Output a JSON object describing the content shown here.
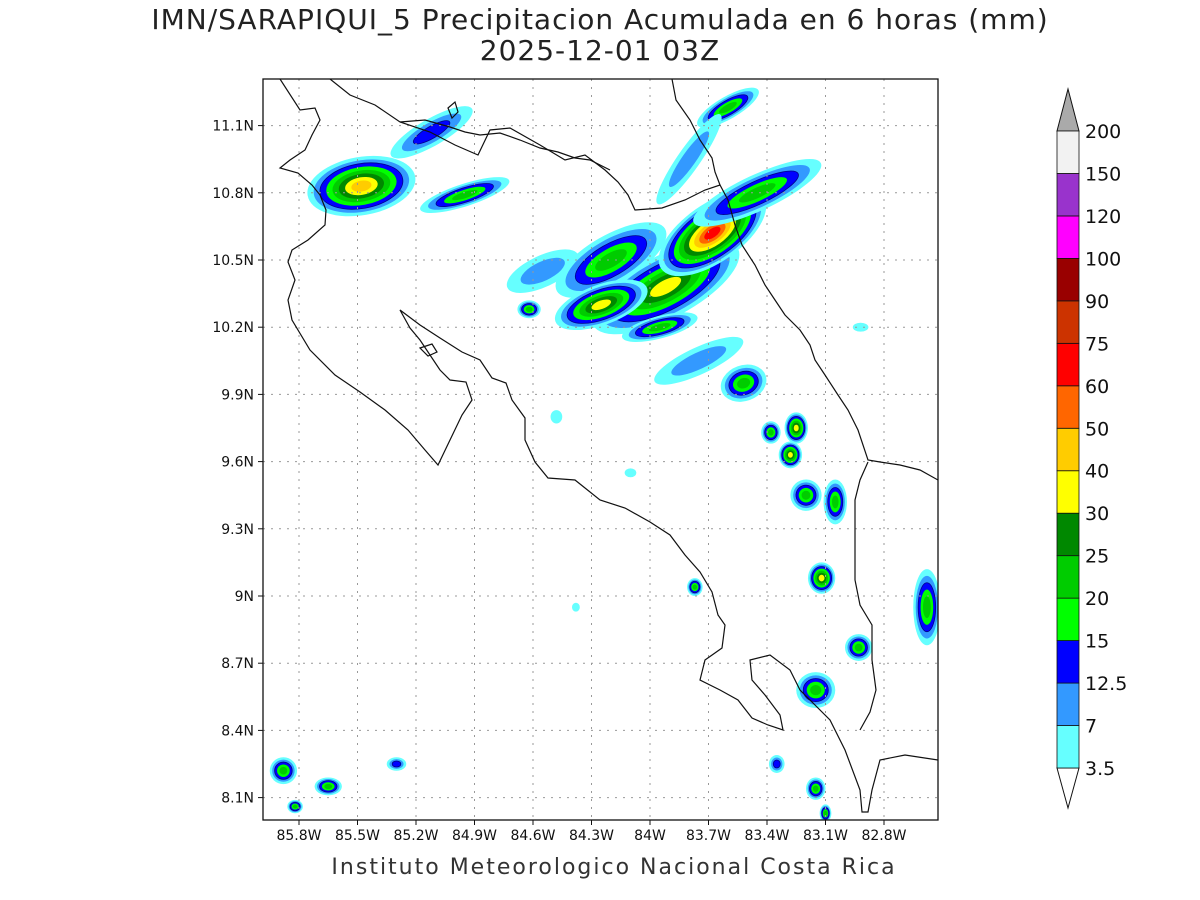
{
  "title": "IMN/SARAPIQUI_5 Precipitacion Acumulada en 6 horas (mm)",
  "subtitle": "2025-12-01 03Z",
  "footer": "Instituto Meteorologico Nacional Costa Rica",
  "map": {
    "lat_range": [
      8.0,
      11.3
    ],
    "lon_range": [
      -86.0,
      -83.0
    ],
    "lat_ticks": [
      {
        "value": 8.1,
        "label": "8.1N"
      },
      {
        "value": 8.4,
        "label": "8.4N"
      },
      {
        "value": 8.7,
        "label": "8.7N"
      },
      {
        "value": 9.0,
        "label": "9N"
      },
      {
        "value": 9.3,
        "label": "9.3N"
      },
      {
        "value": 9.6,
        "label": "9.6N"
      },
      {
        "value": 9.9,
        "label": "9.9N"
      },
      {
        "value": 10.2,
        "label": "10.2N"
      },
      {
        "value": 10.5,
        "label": "10.5N"
      },
      {
        "value": 10.8,
        "label": "10.8N"
      },
      {
        "value": 11.1,
        "label": "11.1N"
      }
    ],
    "lon_ticks": [
      {
        "value": -85.8,
        "label": "85.8W"
      },
      {
        "value": -85.5,
        "label": "85.5W"
      },
      {
        "value": -85.2,
        "label": "85.2W"
      },
      {
        "value": -84.9,
        "label": "84.9W"
      },
      {
        "value": -84.6,
        "label": "84.6W"
      },
      {
        "value": -84.3,
        "label": "84.3W"
      },
      {
        "value": -84.0,
        "label": "84W"
      },
      {
        "value": -83.7,
        "label": "83.7W"
      },
      {
        "value": -83.4,
        "label": "83.4W"
      },
      {
        "value": -83.1,
        "label": "83.1W"
      },
      {
        "value": -82.8,
        "label": "82.8W"
      }
    ],
    "grid": "dotted"
  },
  "colorbar": {
    "levels": [
      {
        "label": "3.5",
        "color": "#66ffff"
      },
      {
        "label": "7",
        "color": "#3399ff"
      },
      {
        "label": "12.5",
        "color": "#0000ff"
      },
      {
        "label": "15",
        "color": "#00ff00"
      },
      {
        "label": "20",
        "color": "#00cc00"
      },
      {
        "label": "25",
        "color": "#008800"
      },
      {
        "label": "30",
        "color": "#ffff00"
      },
      {
        "label": "40",
        "color": "#ffcc00"
      },
      {
        "label": "50",
        "color": "#ff6600"
      },
      {
        "label": "60",
        "color": "#ff0000"
      },
      {
        "label": "75",
        "color": "#cc3300"
      },
      {
        "label": "90",
        "color": "#990000"
      },
      {
        "label": "100",
        "color": "#ff00ff"
      },
      {
        "label": "120",
        "color": "#9933cc"
      },
      {
        "label": "150",
        "color": "#f2f2f2"
      },
      {
        "label": "200",
        "color": ""
      }
    ],
    "over_color": "#aaaaaa",
    "under_color": "#ffffff"
  },
  "precip_cells": [
    {
      "lon": -85.48,
      "lat": 10.83,
      "rx_deg": 0.28,
      "ry_deg": 0.13,
      "rot": -10,
      "max": 40
    },
    {
      "lon": -84.95,
      "lat": 10.79,
      "rx_deg": 0.24,
      "ry_deg": 0.05,
      "rot": -18,
      "max": 20
    },
    {
      "lon": -85.12,
      "lat": 11.07,
      "rx_deg": 0.24,
      "ry_deg": 0.06,
      "rot": -30,
      "max": 12.5
    },
    {
      "lon": -84.55,
      "lat": 10.45,
      "rx_deg": 0.2,
      "ry_deg": 0.07,
      "rot": -25,
      "max": 7
    },
    {
      "lon": -84.2,
      "lat": 10.5,
      "rx_deg": 0.32,
      "ry_deg": 0.11,
      "rot": -30,
      "max": 20
    },
    {
      "lon": -83.92,
      "lat": 10.38,
      "rx_deg": 0.42,
      "ry_deg": 0.14,
      "rot": -28,
      "max": 30
    },
    {
      "lon": -84.25,
      "lat": 10.3,
      "rx_deg": 0.25,
      "ry_deg": 0.09,
      "rot": -20,
      "max": 30
    },
    {
      "lon": -83.68,
      "lat": 10.62,
      "rx_deg": 0.32,
      "ry_deg": 0.13,
      "rot": -35,
      "max": 60
    },
    {
      "lon": -83.45,
      "lat": 10.8,
      "rx_deg": 0.36,
      "ry_deg": 0.08,
      "rot": -25,
      "max": 20
    },
    {
      "lon": -83.6,
      "lat": 11.18,
      "rx_deg": 0.18,
      "ry_deg": 0.05,
      "rot": -30,
      "max": 20
    },
    {
      "lon": -83.8,
      "lat": 10.95,
      "rx_deg": 0.28,
      "ry_deg": 0.05,
      "rot": -55,
      "max": 7
    },
    {
      "lon": -83.95,
      "lat": 10.2,
      "rx_deg": 0.2,
      "ry_deg": 0.05,
      "rot": -15,
      "max": 20
    },
    {
      "lon": -84.62,
      "lat": 10.28,
      "rx_deg": 0.06,
      "ry_deg": 0.04,
      "rot": 0,
      "max": 20
    },
    {
      "lon": -83.75,
      "lat": 10.05,
      "rx_deg": 0.25,
      "ry_deg": 0.06,
      "rot": -25,
      "max": 7
    },
    {
      "lon": -83.52,
      "lat": 9.95,
      "rx_deg": 0.12,
      "ry_deg": 0.08,
      "rot": -20,
      "max": 20
    },
    {
      "lon": -83.25,
      "lat": 9.75,
      "rx_deg": 0.06,
      "ry_deg": 0.07,
      "rot": 0,
      "max": 30
    },
    {
      "lon": -83.28,
      "lat": 9.63,
      "rx_deg": 0.06,
      "ry_deg": 0.06,
      "rot": 0,
      "max": 30
    },
    {
      "lon": -83.38,
      "lat": 9.73,
      "rx_deg": 0.05,
      "ry_deg": 0.05,
      "rot": 0,
      "max": 20
    },
    {
      "lon": -83.2,
      "lat": 9.45,
      "rx_deg": 0.08,
      "ry_deg": 0.07,
      "rot": -20,
      "max": 20
    },
    {
      "lon": -83.05,
      "lat": 9.42,
      "rx_deg": 0.06,
      "ry_deg": 0.1,
      "rot": 0,
      "max": 20
    },
    {
      "lon": -83.12,
      "lat": 9.08,
      "rx_deg": 0.07,
      "ry_deg": 0.07,
      "rot": 0,
      "max": 30
    },
    {
      "lon": -82.93,
      "lat": 8.77,
      "rx_deg": 0.07,
      "ry_deg": 0.06,
      "rot": 0,
      "max": 20
    },
    {
      "lon": -83.77,
      "lat": 9.04,
      "rx_deg": 0.04,
      "ry_deg": 0.04,
      "rot": 0,
      "max": 20
    },
    {
      "lon": -83.15,
      "lat": 8.58,
      "rx_deg": 0.1,
      "ry_deg": 0.08,
      "rot": 0,
      "max": 20
    },
    {
      "lon": -82.58,
      "lat": 8.95,
      "rx_deg": 0.07,
      "ry_deg": 0.17,
      "rot": 0,
      "max": 20
    },
    {
      "lon": -85.88,
      "lat": 8.22,
      "rx_deg": 0.07,
      "ry_deg": 0.06,
      "rot": 0,
      "max": 20
    },
    {
      "lon": -85.65,
      "lat": 8.15,
      "rx_deg": 0.07,
      "ry_deg": 0.04,
      "rot": 0,
      "max": 20
    },
    {
      "lon": -85.82,
      "lat": 8.06,
      "rx_deg": 0.04,
      "ry_deg": 0.03,
      "rot": 0,
      "max": 20
    },
    {
      "lon": -85.3,
      "lat": 8.25,
      "rx_deg": 0.05,
      "ry_deg": 0.03,
      "rot": 0,
      "max": 12.5
    },
    {
      "lon": -83.35,
      "lat": 8.25,
      "rx_deg": 0.04,
      "ry_deg": 0.04,
      "rot": 0,
      "max": 12.5
    },
    {
      "lon": -83.15,
      "lat": 8.14,
      "rx_deg": 0.05,
      "ry_deg": 0.05,
      "rot": 0,
      "max": 20
    },
    {
      "lon": -83.1,
      "lat": 8.03,
      "rx_deg": 0.03,
      "ry_deg": 0.04,
      "rot": 0,
      "max": 20
    },
    {
      "lon": -84.38,
      "lat": 8.95,
      "rx_deg": 0.02,
      "ry_deg": 0.02,
      "rot": 0,
      "max": 3.5
    },
    {
      "lon": -84.1,
      "lat": 9.55,
      "rx_deg": 0.03,
      "ry_deg": 0.02,
      "rot": 0,
      "max": 3.5
    },
    {
      "lon": -84.48,
      "lat": 9.8,
      "rx_deg": 0.03,
      "ry_deg": 0.03,
      "rot": 0,
      "max": 3.5
    },
    {
      "lon": -82.92,
      "lat": 10.2,
      "rx_deg": 0.04,
      "ry_deg": 0.02,
      "rot": 0,
      "max": 3.5
    }
  ]
}
